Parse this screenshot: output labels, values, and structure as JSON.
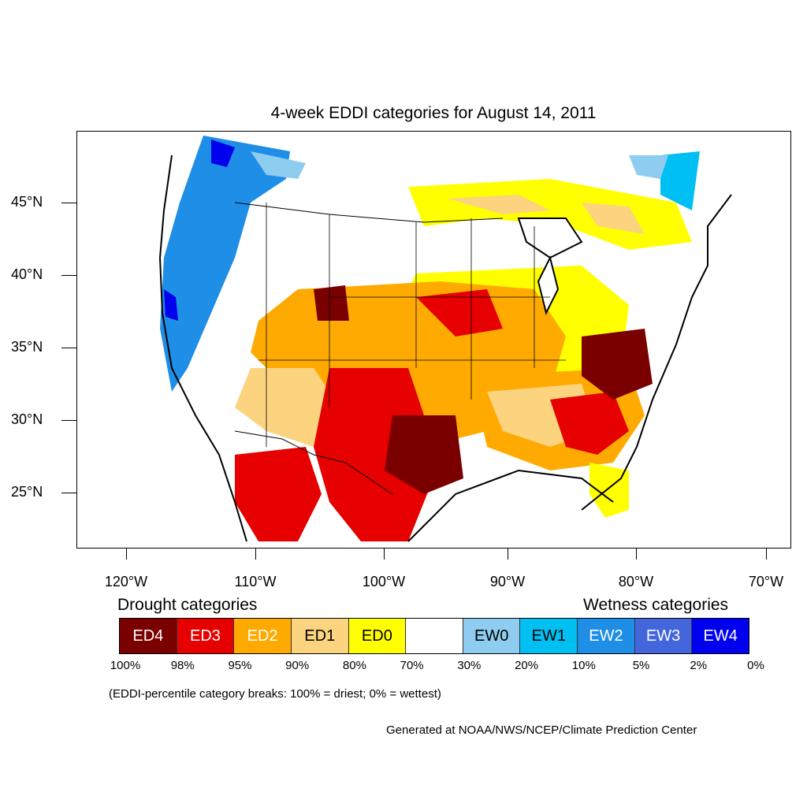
{
  "title": "4-week EDDI categories for August 14, 2011",
  "axes": {
    "lat_labels": [
      "45°N",
      "40°N",
      "35°N",
      "30°N",
      "25°N"
    ],
    "lon_labels": [
      "120°W",
      "110°W",
      "100°W",
      "90°W",
      "80°W",
      "70°W"
    ]
  },
  "legend": {
    "drought_heading": "Drought categories",
    "wetness_heading": "Wetness categories",
    "categories": [
      {
        "label": "ED4",
        "color": "#7a0000",
        "text_color": "#ffffff"
      },
      {
        "label": "ED3",
        "color": "#e60000",
        "text_color": "#ffffff"
      },
      {
        "label": "ED2",
        "color": "#ffaa00",
        "text_color": "#ffffff"
      },
      {
        "label": "ED1",
        "color": "#fcd37f",
        "text_color": "#000000"
      },
      {
        "label": "ED0",
        "color": "#ffff00",
        "text_color": "#000000"
      },
      {
        "label": "",
        "color": "#ffffff",
        "text_color": "#000000"
      },
      {
        "label": "EW0",
        "color": "#8ecdf0",
        "text_color": "#000000"
      },
      {
        "label": "EW1",
        "color": "#00bff3",
        "text_color": "#000000"
      },
      {
        "label": "EW2",
        "color": "#1e8ee6",
        "text_color": "#ffffff"
      },
      {
        "label": "EW3",
        "color": "#4466dd",
        "text_color": "#ffffff"
      },
      {
        "label": "EW4",
        "color": "#0000ee",
        "text_color": "#ffffff"
      }
    ],
    "percentiles": [
      "100%",
      "98%",
      "95%",
      "90%",
      "80%",
      "70%",
      "30%",
      "20%",
      "10%",
      "5%",
      "2%",
      "0%"
    ]
  },
  "note": "(EDDI-percentile category breaks: 100% = driest; 0% = wettest)",
  "credit": "Generated at NOAA/NWS/NCEP/Climate Prediction Center"
}
